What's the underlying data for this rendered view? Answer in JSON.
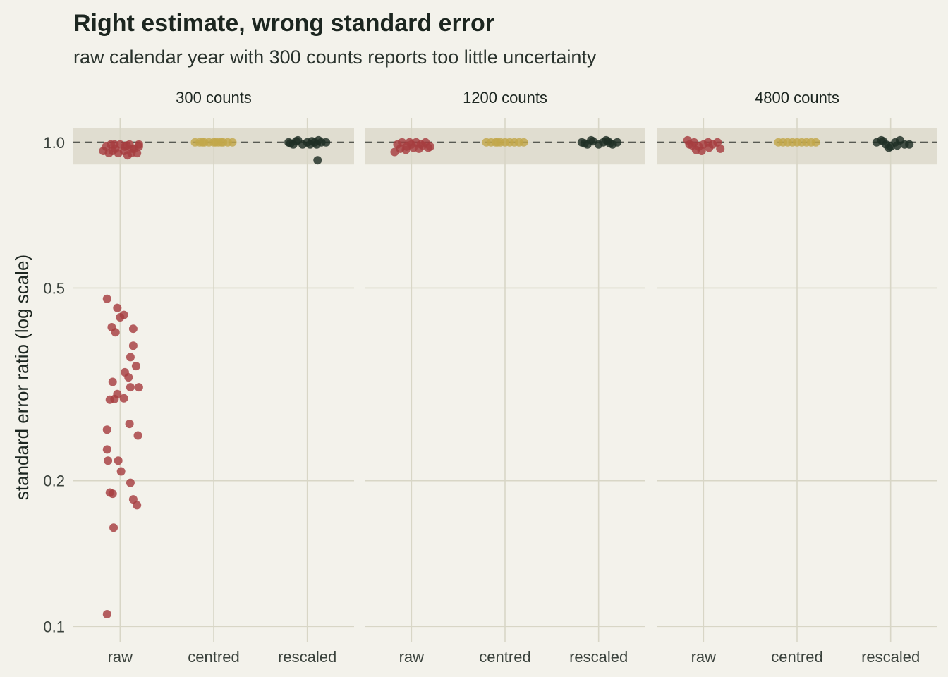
{
  "chart_data": {
    "type": "scatter",
    "title": "Right estimate, wrong standard error",
    "subtitle": "raw calendar year with 300 counts reports too little uncertainty",
    "ylabel": "standard error ratio (log scale)",
    "xlabel": "",
    "y_scale": "log",
    "ylim": [
      0.093,
      1.12
    ],
    "yticks": [
      {
        "value": 1.0,
        "label": "1.0"
      },
      {
        "value": 0.5,
        "label": "0.5"
      },
      {
        "value": 0.2,
        "label": "0.2"
      },
      {
        "value": 0.1,
        "label": "0.1"
      }
    ],
    "reference_line": 1.0,
    "reference_band": [
      0.9,
      1.07
    ],
    "categories": [
      "raw",
      "centred",
      "rescaled"
    ],
    "colors": {
      "raw": "#a63d40",
      "centred": "#c2a74a",
      "rescaled": "#1e2e24",
      "background": "#f3f2eb",
      "band": "#e0ddd0",
      "grid": "#d8d6c6"
    },
    "grid": true,
    "legend": "none",
    "panels": [
      {
        "label": "300 counts",
        "series": [
          {
            "category": "raw",
            "points": [
              {
                "x": -0.15,
                "y": 0.98
              },
              {
                "x": -0.1,
                "y": 0.99
              },
              {
                "x": -0.05,
                "y": 0.97
              },
              {
                "x": 0.0,
                "y": 0.99
              },
              {
                "x": 0.05,
                "y": 0.98
              },
              {
                "x": 0.1,
                "y": 0.99
              },
              {
                "x": 0.15,
                "y": 0.97
              },
              {
                "x": 0.2,
                "y": 0.99
              },
              {
                "x": -0.18,
                "y": 0.96
              },
              {
                "x": -0.12,
                "y": 0.95
              },
              {
                "x": -0.08,
                "y": 0.96
              },
              {
                "x": -0.02,
                "y": 0.95
              },
              {
                "x": 0.04,
                "y": 0.96
              },
              {
                "x": 0.08,
                "y": 0.94
              },
              {
                "x": 0.12,
                "y": 0.95
              },
              {
                "x": 0.18,
                "y": 0.95
              },
              {
                "x": 0.2,
                "y": 0.98
              },
              {
                "x": -0.06,
                "y": 0.99
              },
              {
                "x": 0.07,
                "y": 0.985
              },
              {
                "x": 0.13,
                "y": 0.97
              },
              {
                "x": -0.14,
                "y": 0.475
              },
              {
                "x": -0.03,
                "y": 0.455
              },
              {
                "x": 0.04,
                "y": 0.44
              },
              {
                "x": 0.0,
                "y": 0.435
              },
              {
                "x": -0.09,
                "y": 0.415
              },
              {
                "x": 0.14,
                "y": 0.412
              },
              {
                "x": -0.05,
                "y": 0.405
              },
              {
                "x": 0.14,
                "y": 0.38
              },
              {
                "x": 0.11,
                "y": 0.36
              },
              {
                "x": 0.17,
                "y": 0.345
              },
              {
                "x": 0.05,
                "y": 0.335
              },
              {
                "x": 0.09,
                "y": 0.327
              },
              {
                "x": -0.08,
                "y": 0.32
              },
              {
                "x": 0.2,
                "y": 0.312
              },
              {
                "x": 0.11,
                "y": 0.312
              },
              {
                "x": -0.03,
                "y": 0.302
              },
              {
                "x": 0.04,
                "y": 0.296
              },
              {
                "x": -0.11,
                "y": 0.294
              },
              {
                "x": -0.06,
                "y": 0.295
              },
              {
                "x": 0.1,
                "y": 0.262
              },
              {
                "x": -0.14,
                "y": 0.255
              },
              {
                "x": 0.19,
                "y": 0.248
              },
              {
                "x": -0.14,
                "y": 0.232
              },
              {
                "x": -0.13,
                "y": 0.22
              },
              {
                "x": -0.02,
                "y": 0.22
              },
              {
                "x": 0.01,
                "y": 0.209
              },
              {
                "x": 0.11,
                "y": 0.198
              },
              {
                "x": -0.11,
                "y": 0.189
              },
              {
                "x": -0.08,
                "y": 0.188
              },
              {
                "x": 0.14,
                "y": 0.183
              },
              {
                "x": 0.18,
                "y": 0.178
              },
              {
                "x": -0.07,
                "y": 0.16
              },
              {
                "x": -0.14,
                "y": 0.106
              }
            ]
          },
          {
            "category": "centred",
            "points": [
              {
                "x": -0.2,
                "y": 1.0
              },
              {
                "x": -0.15,
                "y": 1.0
              },
              {
                "x": -0.1,
                "y": 1.0
              },
              {
                "x": -0.05,
                "y": 1.0
              },
              {
                "x": 0.0,
                "y": 1.0
              },
              {
                "x": 0.05,
                "y": 1.0
              },
              {
                "x": 0.1,
                "y": 1.0
              },
              {
                "x": 0.15,
                "y": 1.0
              },
              {
                "x": 0.2,
                "y": 1.0
              },
              {
                "x": -0.12,
                "y": 1.0
              },
              {
                "x": 0.08,
                "y": 1.0
              },
              {
                "x": 0.02,
                "y": 1.0
              }
            ]
          },
          {
            "category": "rescaled",
            "points": [
              {
                "x": -0.2,
                "y": 1.0
              },
              {
                "x": -0.15,
                "y": 0.99
              },
              {
                "x": -0.1,
                "y": 1.01
              },
              {
                "x": -0.05,
                "y": 0.99
              },
              {
                "x": 0.0,
                "y": 1.0
              },
              {
                "x": 0.05,
                "y": 1.005
              },
              {
                "x": 0.1,
                "y": 0.99
              },
              {
                "x": 0.15,
                "y": 1.0
              },
              {
                "x": 0.2,
                "y": 1.0
              },
              {
                "x": -0.12,
                "y": 1.005
              },
              {
                "x": 0.08,
                "y": 1.0
              },
              {
                "x": -0.18,
                "y": 0.995
              },
              {
                "x": 0.03,
                "y": 0.99
              },
              {
                "x": 0.12,
                "y": 1.01
              },
              {
                "x": 0.11,
                "y": 0.918
              }
            ]
          }
        ]
      },
      {
        "label": "1200 counts",
        "series": [
          {
            "category": "raw",
            "points": [
              {
                "x": -0.15,
                "y": 0.99
              },
              {
                "x": -0.1,
                "y": 1.0
              },
              {
                "x": -0.05,
                "y": 0.98
              },
              {
                "x": 0.0,
                "y": 0.99
              },
              {
                "x": 0.05,
                "y": 1.0
              },
              {
                "x": 0.1,
                "y": 0.99
              },
              {
                "x": 0.15,
                "y": 1.0
              },
              {
                "x": 0.2,
                "y": 0.98
              },
              {
                "x": -0.18,
                "y": 0.955
              },
              {
                "x": -0.12,
                "y": 0.97
              },
              {
                "x": -0.06,
                "y": 0.965
              },
              {
                "x": 0.02,
                "y": 0.975
              },
              {
                "x": 0.08,
                "y": 0.97
              },
              {
                "x": 0.18,
                "y": 0.975
              },
              {
                "x": -0.02,
                "y": 1.0
              },
              {
                "x": 0.12,
                "y": 0.985
              }
            ]
          },
          {
            "category": "centred",
            "points": [
              {
                "x": -0.2,
                "y": 1.0
              },
              {
                "x": -0.15,
                "y": 1.0
              },
              {
                "x": -0.1,
                "y": 1.0
              },
              {
                "x": -0.05,
                "y": 1.0
              },
              {
                "x": 0.0,
                "y": 1.0
              },
              {
                "x": 0.05,
                "y": 1.0
              },
              {
                "x": 0.1,
                "y": 1.0
              },
              {
                "x": 0.15,
                "y": 1.0
              },
              {
                "x": 0.2,
                "y": 1.0
              },
              {
                "x": -0.08,
                "y": 1.0
              }
            ]
          },
          {
            "category": "rescaled",
            "points": [
              {
                "x": -0.18,
                "y": 1.0
              },
              {
                "x": -0.12,
                "y": 0.99
              },
              {
                "x": -0.06,
                "y": 1.005
              },
              {
                "x": 0.0,
                "y": 0.99
              },
              {
                "x": 0.05,
                "y": 1.0
              },
              {
                "x": 0.1,
                "y": 1.005
              },
              {
                "x": 0.15,
                "y": 0.99
              },
              {
                "x": 0.2,
                "y": 1.0
              },
              {
                "x": -0.08,
                "y": 1.01
              },
              {
                "x": 0.08,
                "y": 1.01
              },
              {
                "x": -0.15,
                "y": 0.995
              },
              {
                "x": 0.12,
                "y": 0.995
              }
            ]
          }
        ]
      },
      {
        "label": "4800 counts",
        "series": [
          {
            "category": "raw",
            "points": [
              {
                "x": -0.15,
                "y": 0.99
              },
              {
                "x": -0.1,
                "y": 1.0
              },
              {
                "x": -0.05,
                "y": 0.98
              },
              {
                "x": 0.0,
                "y": 0.99
              },
              {
                "x": 0.05,
                "y": 1.0
              },
              {
                "x": 0.1,
                "y": 0.99
              },
              {
                "x": -0.17,
                "y": 1.01
              },
              {
                "x": -0.08,
                "y": 0.965
              },
              {
                "x": -0.02,
                "y": 0.96
              },
              {
                "x": 0.06,
                "y": 0.975
              },
              {
                "x": 0.18,
                "y": 0.97
              },
              {
                "x": 0.15,
                "y": 1.0
              },
              {
                "x": -0.12,
                "y": 0.985
              }
            ]
          },
          {
            "category": "centred",
            "points": [
              {
                "x": -0.2,
                "y": 1.0
              },
              {
                "x": -0.15,
                "y": 1.0
              },
              {
                "x": -0.1,
                "y": 1.0
              },
              {
                "x": -0.05,
                "y": 1.0
              },
              {
                "x": 0.0,
                "y": 1.0
              },
              {
                "x": 0.05,
                "y": 1.0
              },
              {
                "x": 0.1,
                "y": 1.0
              },
              {
                "x": 0.15,
                "y": 1.0
              },
              {
                "x": 0.2,
                "y": 1.0
              }
            ]
          },
          {
            "category": "rescaled",
            "points": [
              {
                "x": -0.15,
                "y": 1.0
              },
              {
                "x": -0.1,
                "y": 1.01
              },
              {
                "x": -0.05,
                "y": 0.99
              },
              {
                "x": 0.0,
                "y": 0.98
              },
              {
                "x": 0.05,
                "y": 1.0
              },
              {
                "x": 0.1,
                "y": 1.01
              },
              {
                "x": 0.15,
                "y": 0.99
              },
              {
                "x": 0.2,
                "y": 0.99
              },
              {
                "x": -0.02,
                "y": 0.975
              },
              {
                "x": 0.07,
                "y": 0.985
              },
              {
                "x": -0.08,
                "y": 1.005
              }
            ]
          }
        ]
      }
    ]
  }
}
